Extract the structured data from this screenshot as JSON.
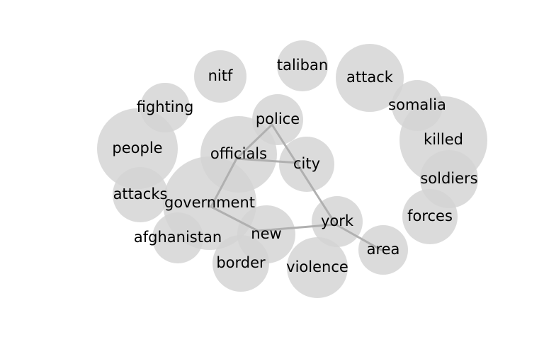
{
  "diagram": {
    "type": "word-bubble-network",
    "colors": {
      "bubble": "#d3d3d3",
      "edge": "#b0b0b0",
      "text": "#000000",
      "background": "#ffffff"
    },
    "nodes": [
      {
        "id": "nitf",
        "label": "nitf"
      },
      {
        "id": "taliban",
        "label": "taliban"
      },
      {
        "id": "attack",
        "label": "attack"
      },
      {
        "id": "fighting",
        "label": "fighting"
      },
      {
        "id": "somalia",
        "label": "somalia"
      },
      {
        "id": "police",
        "label": "police"
      },
      {
        "id": "people",
        "label": "people"
      },
      {
        "id": "killed",
        "label": "killed"
      },
      {
        "id": "officials",
        "label": "officials"
      },
      {
        "id": "city",
        "label": "city"
      },
      {
        "id": "soldiers",
        "label": "soldiers"
      },
      {
        "id": "attacks",
        "label": "attacks"
      },
      {
        "id": "government",
        "label": "government"
      },
      {
        "id": "forces",
        "label": "forces"
      },
      {
        "id": "york",
        "label": "york"
      },
      {
        "id": "afghanistan",
        "label": "afghanistan"
      },
      {
        "id": "new",
        "label": "new"
      },
      {
        "id": "area",
        "label": "area"
      },
      {
        "id": "border",
        "label": "border"
      },
      {
        "id": "violence",
        "label": "violence"
      }
    ],
    "edges": [
      [
        "police",
        "officials"
      ],
      [
        "officials",
        "government"
      ],
      [
        "government",
        "new"
      ],
      [
        "new",
        "york"
      ],
      [
        "police",
        "york"
      ],
      [
        "officials",
        "city"
      ],
      [
        "york",
        "area"
      ]
    ]
  }
}
